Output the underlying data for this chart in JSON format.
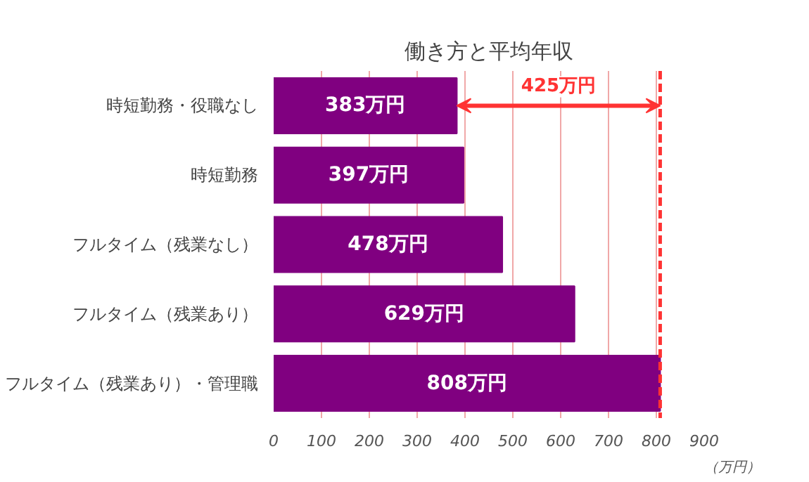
{
  "chart_data": {
    "type": "bar",
    "orientation": "horizontal",
    "title": "働き方と平均年収",
    "xlabel": "（万円）",
    "categories": [
      "時短勤務・役職なし",
      "時短勤務",
      "フルタイム（残業なし）",
      "フルタイム（残業あり）",
      "フルタイム（残業あり）・管理職"
    ],
    "values": [
      383,
      397,
      478,
      629,
      808
    ],
    "color": "#800080",
    "value_labels": [
      "383万円",
      "397万円",
      "478万円",
      "629万円",
      "808万円"
    ],
    "xlim": [
      0,
      900
    ],
    "xticks": [
      0,
      100,
      200,
      300,
      400,
      500,
      600,
      700,
      800,
      900
    ],
    "grid": "x",
    "ref_lines": [
      {
        "axis": "x",
        "value": 808,
        "color": "#ff3333",
        "line_style": "dashed"
      }
    ],
    "annotations": [
      "425万円"
    ]
  }
}
